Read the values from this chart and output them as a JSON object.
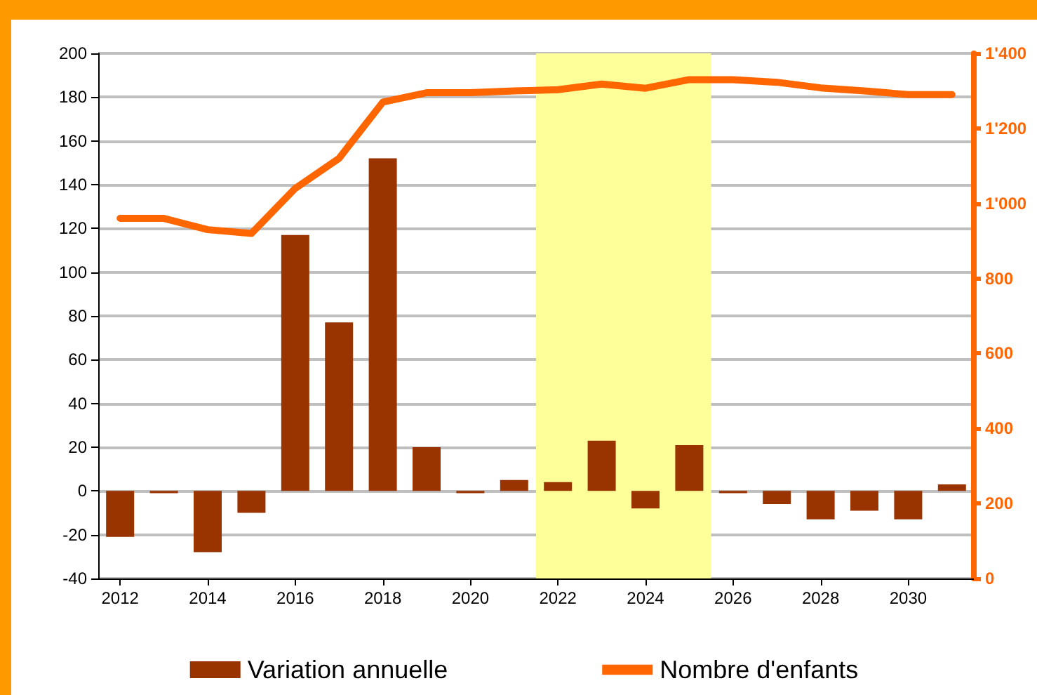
{
  "chart_data": {
    "type": "bar",
    "x": [
      2012,
      2013,
      2014,
      2015,
      2016,
      2017,
      2018,
      2019,
      2020,
      2021,
      2022,
      2023,
      2024,
      2025,
      2026,
      2027,
      2028,
      2029,
      2030,
      2031
    ],
    "xlim": [
      2011.5,
      2031.5
    ],
    "xticks": [
      2012,
      2014,
      2016,
      2018,
      2020,
      2022,
      2024,
      2026,
      2028,
      2030
    ],
    "series": [
      {
        "name": "Variation annuelle",
        "color": "#993300",
        "values": [
          -21,
          -1,
          -28,
          -10,
          117,
          77,
          152,
          20,
          -1,
          5,
          4,
          23,
          -8,
          21,
          -1,
          -6,
          -13,
          -9,
          -13,
          3
        ]
      },
      {
        "name": "Nombre d'enfants",
        "type": "line",
        "axis": "y2",
        "color": "#ff6600",
        "values": [
          960,
          960,
          930,
          920,
          1040,
          1120,
          1270,
          1295,
          1295,
          1300,
          1303,
          1318,
          1307,
          1330,
          1330,
          1323,
          1308,
          1300,
          1290,
          1290
        ]
      }
    ],
    "ylim": [
      -40,
      200
    ],
    "yticks": [
      -40,
      -20,
      0,
      20,
      40,
      60,
      80,
      100,
      120,
      140,
      160,
      180,
      200
    ],
    "y2lim": [
      0,
      1400
    ],
    "y2ticks": [
      0,
      200,
      400,
      600,
      800,
      {
        "value": 1000,
        "label": "1'000"
      },
      {
        "value": 1200,
        "label": "1'200"
      },
      {
        "value": 1400,
        "label": "1'400"
      }
    ],
    "bands": [
      {
        "axis": "x",
        "from": 2021.5,
        "to": 2025.5,
        "color": "#ffff99"
      }
    ],
    "grid": "y",
    "legend": "bottom",
    "marker": "none",
    "line_style": "solid"
  }
}
